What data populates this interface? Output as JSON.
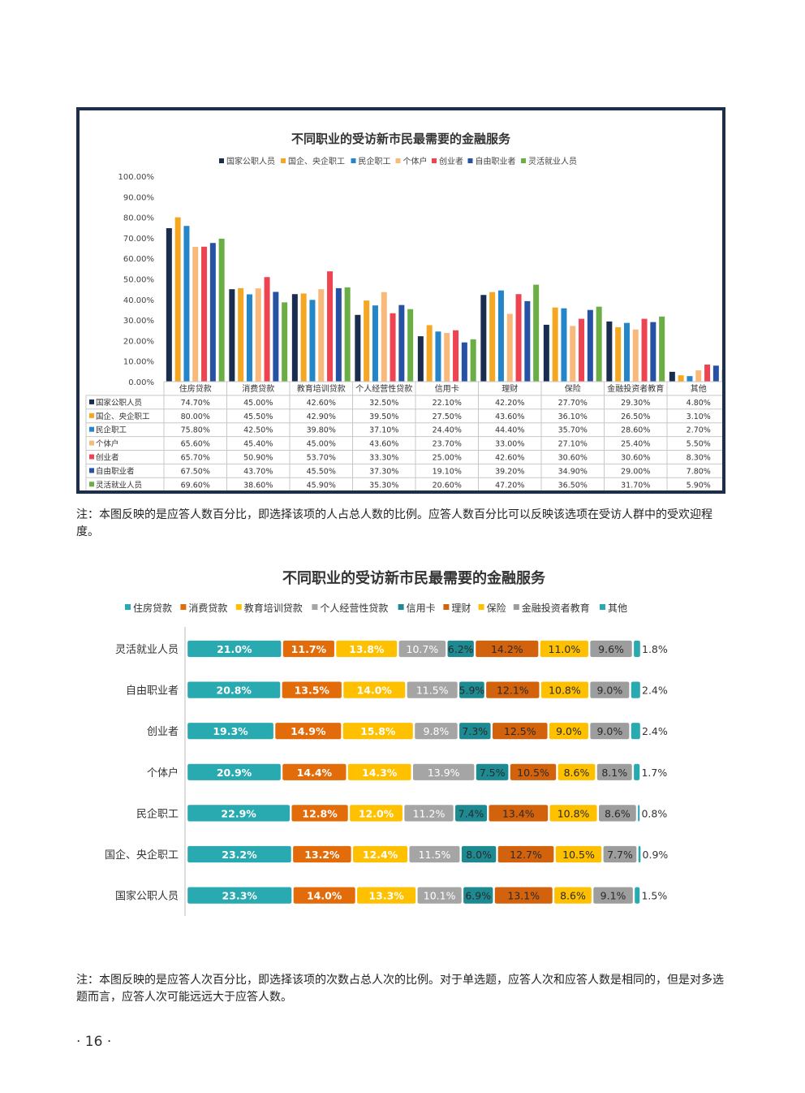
{
  "page_number": "· 16 ·",
  "note1": "注：本图反映的是应答人数百分比，即选择该项的人占总人数的比例。应答人数百分比可以反映该选项在受访人群中的受欢迎程度。",
  "note2": "注：本图反映的是应答人次百分比，即选择该项的次数占总人次的比例。对于单选题，应答人次和应答人数是相同的，但是对多选题而言，应答人次可能远远大于应答人数。",
  "chart_data": [
    {
      "type": "bar",
      "title": "不同职业的受访新市民最需要的金融服务",
      "categories": [
        "住房贷款",
        "消费贷款",
        "教育培训贷款",
        "个人经营性贷款",
        "信用卡",
        "理财",
        "保险",
        "金融投资者教育",
        "其他"
      ],
      "y_ticks": [
        "100.00%",
        "90.00%",
        "80.00%",
        "70.00%",
        "60.00%",
        "50.00%",
        "40.00%",
        "30.00%",
        "20.00%",
        "10.00%",
        "0.00%"
      ],
      "ylim": [
        0,
        100
      ],
      "legend_position": "top",
      "series": [
        {
          "name": "国家公职人员",
          "color": "#1b2d4f",
          "values": [
            74.7,
            45.0,
            42.6,
            32.5,
            22.1,
            42.2,
            27.7,
            29.3,
            4.8
          ]
        },
        {
          "name": "国企、央企职工",
          "color": "#f5a623",
          "values": [
            80.0,
            45.5,
            42.9,
            39.5,
            27.5,
            43.6,
            36.1,
            26.5,
            3.1
          ]
        },
        {
          "name": "民企职工",
          "color": "#2486c9",
          "values": [
            75.8,
            42.5,
            39.8,
            37.1,
            24.4,
            44.4,
            35.7,
            28.6,
            2.7
          ]
        },
        {
          "name": "个体户",
          "color": "#f8b97a",
          "values": [
            65.6,
            45.4,
            45.0,
            43.6,
            23.7,
            33.0,
            27.1,
            25.4,
            5.5
          ]
        },
        {
          "name": "创业者",
          "color": "#ee4452",
          "values": [
            65.7,
            50.9,
            53.7,
            33.3,
            25.0,
            42.6,
            30.6,
            30.6,
            8.3
          ]
        },
        {
          "name": "自由职业者",
          "color": "#2751a3",
          "values": [
            67.5,
            43.7,
            45.5,
            37.3,
            19.1,
            39.2,
            34.9,
            29.0,
            7.8
          ]
        },
        {
          "name": "灵活就业人员",
          "color": "#6cae46",
          "values": [
            69.6,
            38.6,
            45.9,
            35.3,
            20.6,
            47.2,
            36.5,
            31.7,
            5.9
          ]
        }
      ],
      "table_rows": [
        {
          "label": "国家公职人员",
          "cells": [
            "74.70%",
            "45.00%",
            "42.60%",
            "32.50%",
            "22.10%",
            "42.20%",
            "27.70%",
            "29.30%",
            "4.80%"
          ]
        },
        {
          "label": "国企、央企职工",
          "cells": [
            "80.00%",
            "45.50%",
            "42.90%",
            "39.50%",
            "27.50%",
            "43.60%",
            "36.10%",
            "26.50%",
            "3.10%"
          ]
        },
        {
          "label": "民企职工",
          "cells": [
            "75.80%",
            "42.50%",
            "39.80%",
            "37.10%",
            "24.40%",
            "44.40%",
            "35.70%",
            "28.60%",
            "2.70%"
          ]
        },
        {
          "label": "个体户",
          "cells": [
            "65.60%",
            "45.40%",
            "45.00%",
            "43.60%",
            "23.70%",
            "33.00%",
            "27.10%",
            "25.40%",
            "5.50%"
          ]
        },
        {
          "label": "创业者",
          "cells": [
            "65.70%",
            "50.90%",
            "53.70%",
            "33.30%",
            "25.00%",
            "42.60%",
            "30.60%",
            "30.60%",
            "8.30%"
          ]
        },
        {
          "label": "自由职业者",
          "cells": [
            "67.50%",
            "43.70%",
            "45.50%",
            "37.30%",
            "19.10%",
            "39.20%",
            "34.90%",
            "29.00%",
            "7.80%"
          ]
        },
        {
          "label": "灵活就业人员",
          "cells": [
            "69.60%",
            "38.60%",
            "45.90%",
            "35.30%",
            "20.60%",
            "47.20%",
            "36.50%",
            "31.70%",
            "5.90%"
          ]
        }
      ]
    },
    {
      "type": "bar",
      "stacked": true,
      "orientation": "horizontal",
      "title": "不同职业的受访新市民最需要的金融服务",
      "legend_position": "top",
      "categories": [
        "灵活就业人员",
        "自由职业者",
        "创业者",
        "个体户",
        "民企职工",
        "国企、央企职工",
        "国家公职人员"
      ],
      "series": [
        {
          "name": "住房贷款",
          "color": "#29a9b0",
          "values": [
            21.0,
            20.8,
            19.3,
            20.9,
            22.9,
            23.2,
            23.3
          ],
          "labels": [
            "21.0%",
            "20.8%",
            "19.3%",
            "20.9%",
            "22.9%",
            "23.2%",
            "23.3%"
          ]
        },
        {
          "name": "消费贷款",
          "color": "#e36c0a",
          "values": [
            11.7,
            13.5,
            14.9,
            14.4,
            12.8,
            13.2,
            14.0
          ],
          "labels": [
            "11.7%",
            "13.5%",
            "14.9%",
            "14.4%",
            "12.8%",
            "13.2%",
            "14.0%"
          ]
        },
        {
          "name": "教育培训贷款",
          "color": "#ffc000",
          "values": [
            13.8,
            14.0,
            15.8,
            14.3,
            12.0,
            12.4,
            13.3
          ],
          "labels": [
            "13.8%",
            "14.0%",
            "15.8%",
            "14.3%",
            "12.0%",
            "12.4%",
            "13.3%"
          ]
        },
        {
          "name": "个人经营性贷款",
          "color": "#a5a5a5",
          "values": [
            10.7,
            11.5,
            9.8,
            13.9,
            11.2,
            11.5,
            10.1
          ],
          "labels": [
            "10.7%",
            "11.5%",
            "9.8%",
            "13.9%",
            "11.2%",
            "11.5%",
            "10.1%"
          ]
        },
        {
          "name": "信用卡",
          "color": "#1d8a91",
          "values": [
            6.2,
            5.9,
            7.3,
            7.5,
            7.4,
            8.0,
            6.9
          ],
          "labels": [
            "6.2%",
            "5.9%",
            "7.3%",
            "7.5%",
            "7.4%",
            "8.0%",
            "6.9%"
          ]
        },
        {
          "name": "理财",
          "color": "#d2620c",
          "values": [
            14.2,
            12.1,
            12.5,
            10.5,
            13.4,
            12.7,
            13.1
          ],
          "labels": [
            "14.2%",
            "12.1%",
            "12.5%",
            "10.5%",
            "13.4%",
            "12.7%",
            "13.1%"
          ]
        },
        {
          "name": "保险",
          "color": "#ffc000",
          "values": [
            11.0,
            10.8,
            9.0,
            8.6,
            10.8,
            10.5,
            8.6
          ],
          "labels": [
            "11.0%",
            "10.8%",
            "9.0%",
            "8.6%",
            "10.8%",
            "10.5%",
            "8.6%"
          ]
        },
        {
          "name": "金融投资者教育",
          "color": "#9d9d9d",
          "values": [
            9.6,
            9.0,
            9.0,
            8.1,
            8.6,
            7.7,
            9.1
          ],
          "labels": [
            "9.6%",
            "9.0%",
            "9.0%",
            "8.1%",
            "8.6%",
            "7.7%",
            "9.1%"
          ]
        },
        {
          "name": "其他",
          "color": "#29a9b0",
          "values": [
            1.8,
            2.4,
            2.4,
            1.7,
            0.8,
            0.9,
            1.5
          ],
          "labels": [
            "1.8%",
            "2.4%",
            "2.4%",
            "1.7%",
            "0.8%",
            "0.9%",
            "1.5%"
          ]
        }
      ]
    }
  ]
}
